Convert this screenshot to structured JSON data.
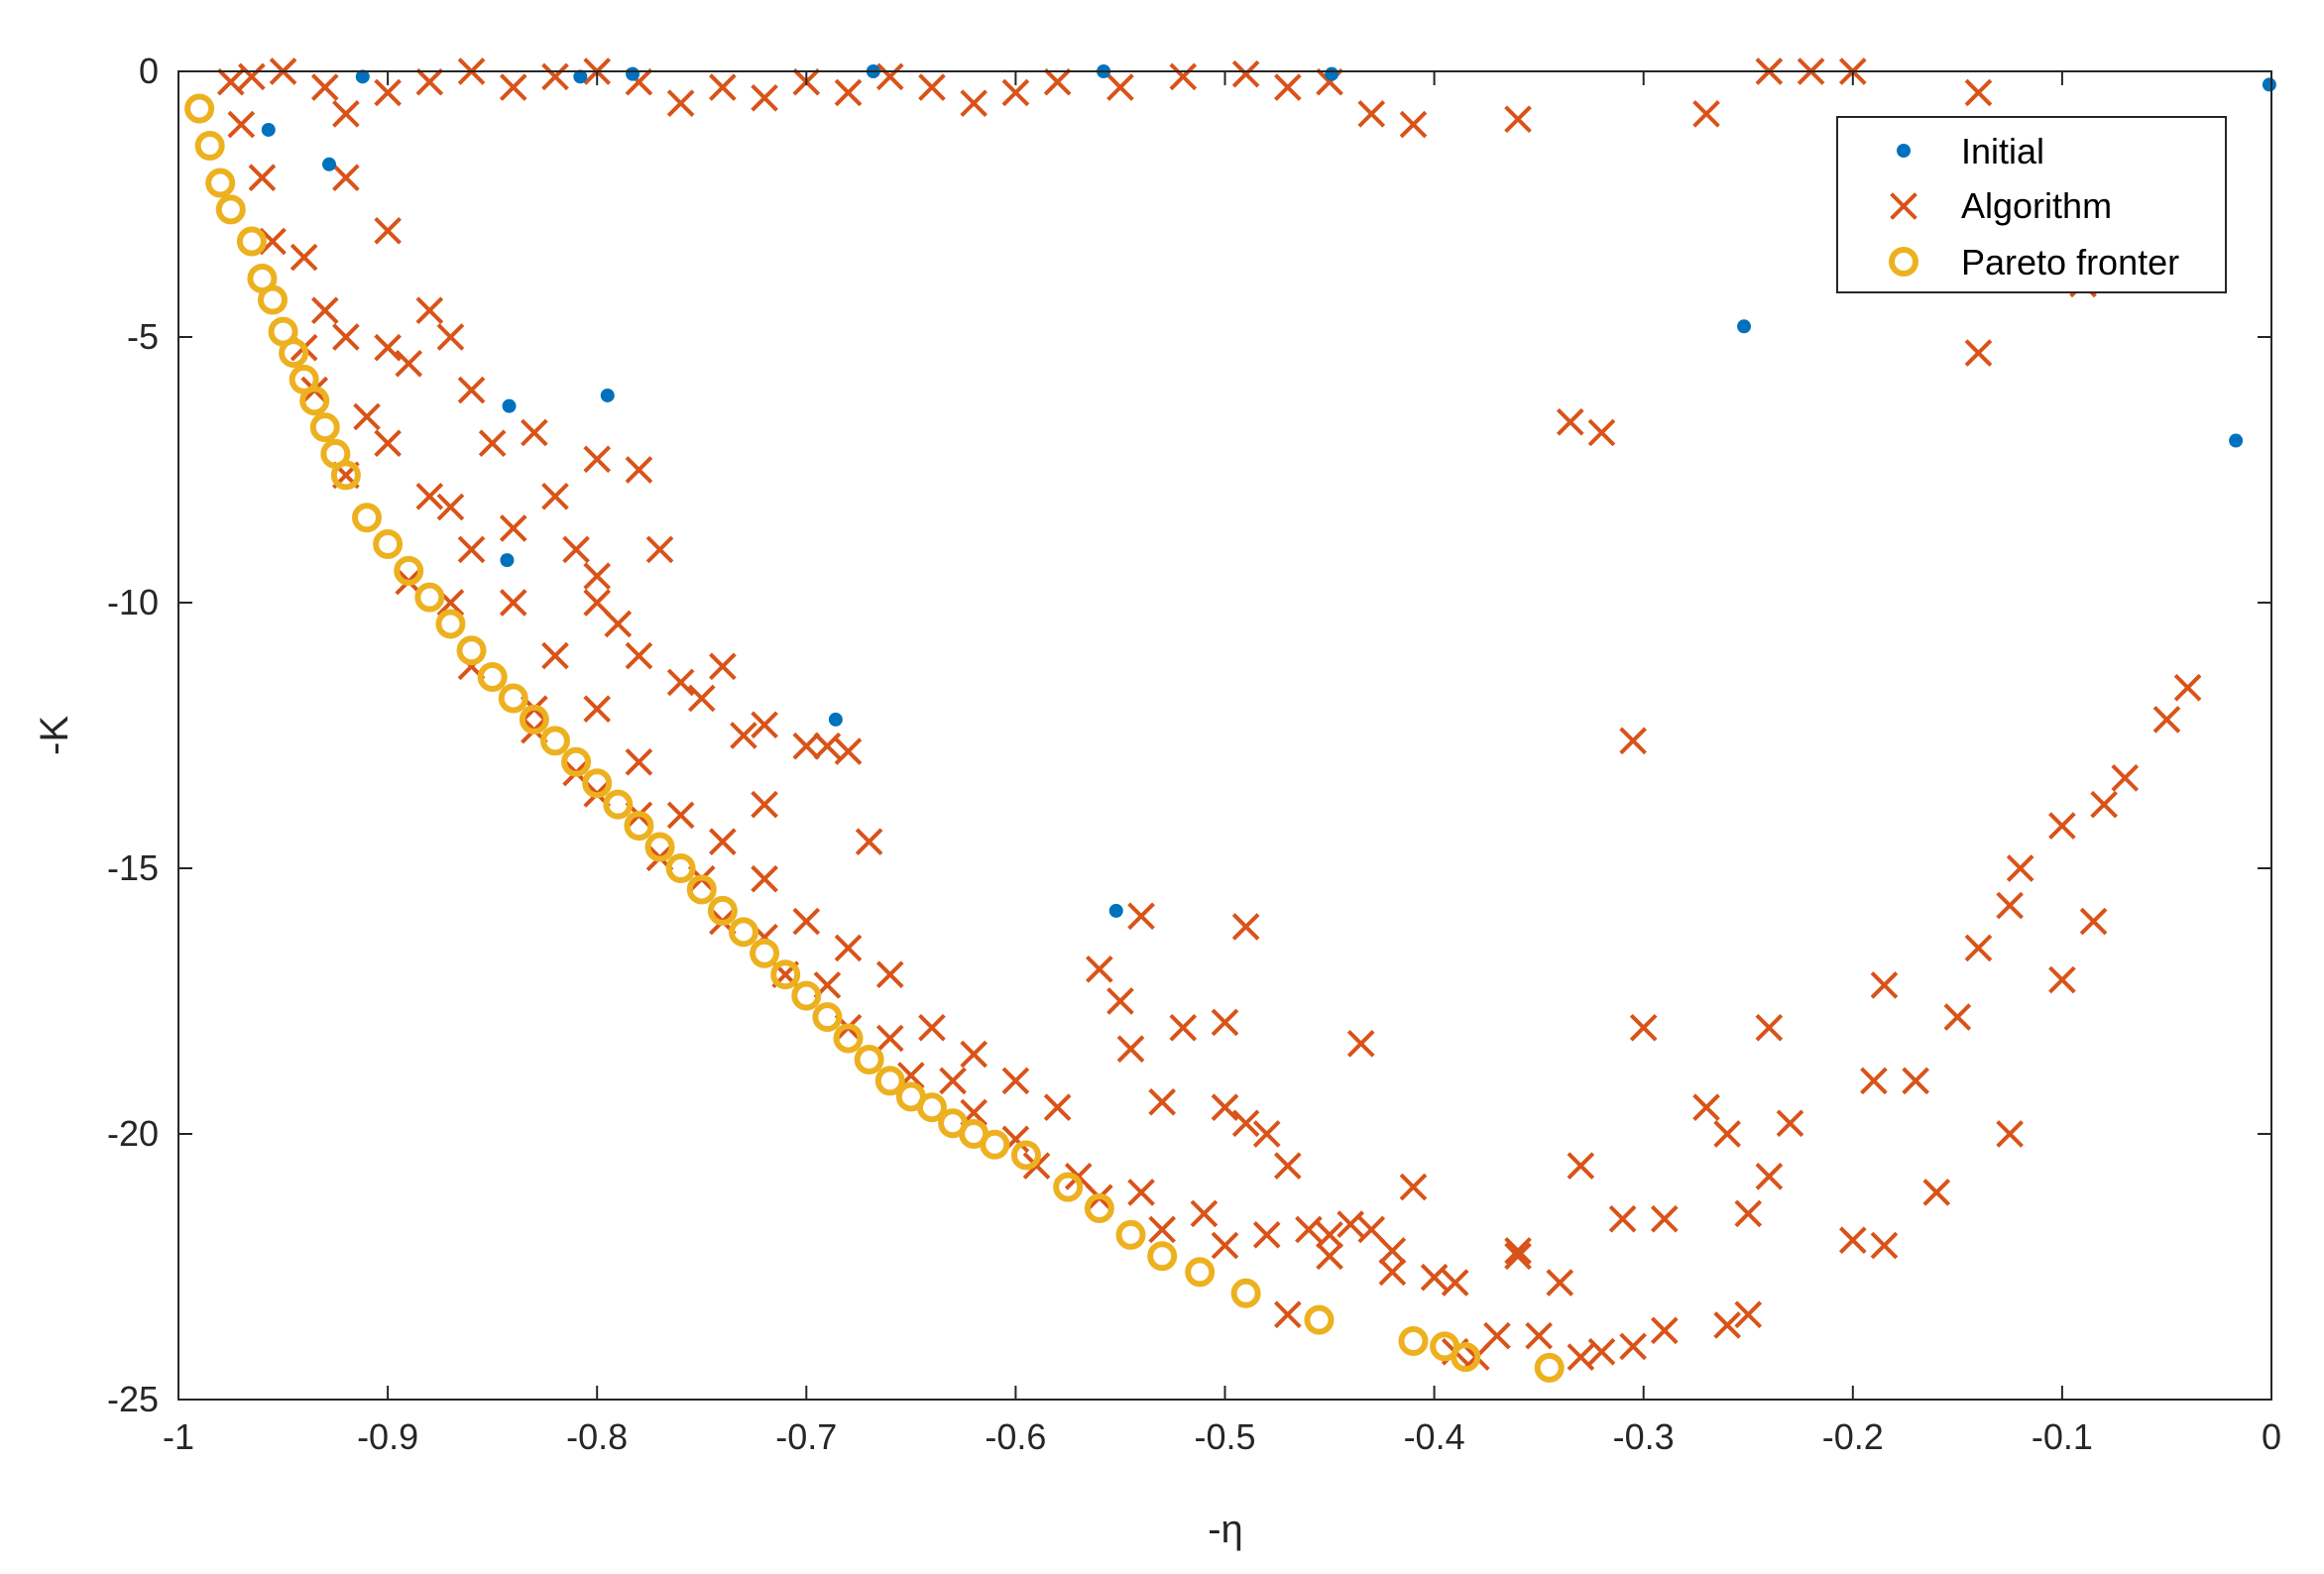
{
  "chart_data": {
    "type": "scatter",
    "xlabel": "-η",
    "ylabel": "-K",
    "xlim": [
      -1,
      0
    ],
    "ylim": [
      -25,
      0
    ],
    "xticks": [
      -1,
      -0.9,
      -0.8,
      -0.7,
      -0.6,
      -0.5,
      -0.4,
      -0.3,
      -0.2,
      -0.1,
      0
    ],
    "xtick_labels": [
      "-1",
      "-0.9",
      "-0.8",
      "-0.7",
      "-0.6",
      "-0.5",
      "-0.4",
      "-0.3",
      "-0.2",
      "-0.1",
      "0"
    ],
    "yticks": [
      0,
      -5,
      -10,
      -15,
      -20,
      -25
    ],
    "ytick_labels": [
      "0",
      "-5",
      "-10",
      "-15",
      "-20",
      "-25"
    ],
    "grid": false,
    "legend_position": "top-right",
    "series": [
      {
        "name": "Initial",
        "marker": "dot",
        "color": "#0072BD",
        "points": [
          [
            -0.957,
            -1.1
          ],
          [
            -0.928,
            -1.75
          ],
          [
            -0.912,
            -0.1
          ],
          [
            -0.842,
            -6.3
          ],
          [
            -0.843,
            -9.2
          ],
          [
            -0.795,
            -6.1
          ],
          [
            -0.808,
            -0.1
          ],
          [
            -0.783,
            -0.05
          ],
          [
            -0.686,
            -12.2
          ],
          [
            -0.668,
            0
          ],
          [
            -0.558,
            0
          ],
          [
            -0.552,
            -15.8
          ],
          [
            -0.449,
            -0.05
          ],
          [
            -0.252,
            -4.8
          ],
          [
            -0.017,
            -6.95
          ],
          [
            -0.001,
            -0.25
          ]
        ]
      },
      {
        "name": "Algorithm",
        "marker": "x",
        "color": "#D95319",
        "points": [
          [
            -0.975,
            -0.2
          ],
          [
            -0.965,
            -0.1
          ],
          [
            -0.95,
            0
          ],
          [
            -0.93,
            -0.3
          ],
          [
            -0.92,
            -0.8
          ],
          [
            -0.9,
            -0.4
          ],
          [
            -0.88,
            -0.2
          ],
          [
            -0.86,
            0
          ],
          [
            -0.84,
            -0.3
          ],
          [
            -0.82,
            -0.1
          ],
          [
            -0.8,
            0
          ],
          [
            -0.78,
            -0.2
          ],
          [
            -0.76,
            -0.6
          ],
          [
            -0.74,
            -0.3
          ],
          [
            -0.72,
            -0.5
          ],
          [
            -0.7,
            -0.2
          ],
          [
            -0.68,
            -0.4
          ],
          [
            -0.66,
            -0.1
          ],
          [
            -0.64,
            -0.3
          ],
          [
            -0.62,
            -0.6
          ],
          [
            -0.6,
            -0.4
          ],
          [
            -0.58,
            -0.2
          ],
          [
            -0.55,
            -0.3
          ],
          [
            -0.52,
            -0.1
          ],
          [
            -0.49,
            -0.05
          ],
          [
            -0.47,
            -0.3
          ],
          [
            -0.45,
            -0.2
          ],
          [
            -0.43,
            -0.8
          ],
          [
            -0.41,
            -1.0
          ],
          [
            -0.36,
            -0.9
          ],
          [
            -0.27,
            -0.8
          ],
          [
            -0.24,
            0
          ],
          [
            -0.22,
            0
          ],
          [
            -0.2,
            0
          ],
          [
            -0.14,
            -0.4
          ],
          [
            -0.14,
            -5.3
          ],
          [
            -0.09,
            -4.0
          ],
          [
            -0.335,
            -6.6
          ],
          [
            -0.32,
            -6.8
          ],
          [
            -0.305,
            -12.6
          ],
          [
            -0.05,
            -12.2
          ],
          [
            -0.04,
            -11.6
          ],
          [
            -0.07,
            -13.3
          ],
          [
            -0.08,
            -13.8
          ],
          [
            -0.1,
            -14.2
          ],
          [
            -0.12,
            -15.0
          ],
          [
            -0.125,
            -15.7
          ],
          [
            -0.14,
            -16.5
          ],
          [
            -0.15,
            -17.8
          ],
          [
            -0.17,
            -19.0
          ],
          [
            -0.185,
            -17.2
          ],
          [
            -0.19,
            -19.0
          ],
          [
            -0.2,
            -22.0
          ],
          [
            -0.185,
            -22.1
          ],
          [
            -0.16,
            -21.1
          ],
          [
            -0.125,
            -20.0
          ],
          [
            -0.1,
            -17.1
          ],
          [
            -0.085,
            -16.0
          ],
          [
            -0.24,
            -18.0
          ],
          [
            -0.23,
            -19.8
          ],
          [
            -0.24,
            -20.8
          ],
          [
            -0.26,
            -20.0
          ],
          [
            -0.25,
            -21.5
          ],
          [
            -0.27,
            -19.5
          ],
          [
            -0.26,
            -23.6
          ],
          [
            -0.25,
            -23.4
          ],
          [
            -0.29,
            -21.6
          ],
          [
            -0.29,
            -23.7
          ],
          [
            -0.3,
            -18.0
          ],
          [
            -0.305,
            -24.0
          ],
          [
            -0.32,
            -24.1
          ],
          [
            -0.33,
            -20.6
          ],
          [
            -0.34,
            -22.8
          ],
          [
            -0.35,
            -23.8
          ],
          [
            -0.36,
            -22.2
          ],
          [
            -0.37,
            -23.8
          ],
          [
            -0.38,
            -24.2
          ],
          [
            -0.39,
            -24.1
          ],
          [
            -0.4,
            -22.7
          ],
          [
            -0.41,
            -21.0
          ],
          [
            -0.42,
            -22.2
          ],
          [
            -0.43,
            -21.8
          ],
          [
            -0.44,
            -21.7
          ],
          [
            -0.45,
            -21.9
          ],
          [
            -0.46,
            -21.8
          ],
          [
            -0.47,
            -20.6
          ],
          [
            -0.48,
            -20.0
          ],
          [
            -0.49,
            -19.8
          ],
          [
            -0.5,
            -19.5
          ],
          [
            -0.5,
            -17.9
          ],
          [
            -0.52,
            -18.0
          ],
          [
            -0.53,
            -19.4
          ],
          [
            -0.545,
            -18.4
          ],
          [
            -0.55,
            -17.5
          ],
          [
            -0.56,
            -16.9
          ],
          [
            -0.49,
            -16.1
          ],
          [
            -0.435,
            -18.3
          ],
          [
            -0.54,
            -15.9
          ],
          [
            -0.58,
            -19.5
          ],
          [
            -0.6,
            -19.0
          ],
          [
            -0.62,
            -18.5
          ],
          [
            -0.64,
            -18.0
          ],
          [
            -0.66,
            -17.0
          ],
          [
            -0.68,
            -16.5
          ],
          [
            -0.7,
            -16.0
          ],
          [
            -0.72,
            -15.2
          ],
          [
            -0.74,
            -14.5
          ],
          [
            -0.76,
            -14.0
          ],
          [
            -0.78,
            -13.0
          ],
          [
            -0.8,
            -12.0
          ],
          [
            -0.82,
            -11.0
          ],
          [
            -0.84,
            -10.0
          ],
          [
            -0.86,
            -9.0
          ],
          [
            -0.88,
            -8.0
          ],
          [
            -0.9,
            -7.0
          ],
          [
            -0.92,
            -5.0
          ],
          [
            -0.94,
            -3.5
          ],
          [
            -0.96,
            -2.0
          ],
          [
            -0.97,
            -1.0
          ],
          [
            -0.67,
            -14.5
          ],
          [
            -0.72,
            -13.8
          ],
          [
            -0.7,
            -12.7
          ],
          [
            -0.73,
            -12.5
          ],
          [
            -0.76,
            -11.5
          ],
          [
            -0.79,
            -10.4
          ],
          [
            -0.8,
            -9.5
          ],
          [
            -0.77,
            -9.0
          ],
          [
            -0.82,
            -8.0
          ],
          [
            -0.85,
            -7.0
          ],
          [
            -0.87,
            -5.0
          ],
          [
            -0.88,
            -4.5
          ],
          [
            -0.9,
            -3.0
          ],
          [
            -0.92,
            -2.0
          ],
          [
            -0.78,
            -7.5
          ],
          [
            -0.8,
            -7.3
          ],
          [
            -0.83,
            -6.8
          ],
          [
            -0.86,
            -6.0
          ],
          [
            -0.89,
            -5.5
          ],
          [
            -0.9,
            -5.2
          ],
          [
            -0.8,
            -10.0
          ],
          [
            -0.78,
            -11.0
          ],
          [
            -0.75,
            -11.8
          ],
          [
            -0.72,
            -12.3
          ],
          [
            -0.69,
            -12.7
          ],
          [
            -0.68,
            -12.8
          ],
          [
            -0.74,
            -11.2
          ],
          [
            -0.81,
            -9.0
          ],
          [
            -0.84,
            -8.6
          ],
          [
            -0.87,
            -8.2
          ],
          [
            -0.91,
            -6.5
          ],
          [
            -0.93,
            -4.5
          ],
          [
            -0.935,
            -6.0
          ],
          [
            -0.87,
            -10.0
          ],
          [
            -0.83,
            -12.0
          ],
          [
            -0.81,
            -13.2
          ],
          [
            -0.78,
            -14.0
          ],
          [
            -0.75,
            -15.2
          ],
          [
            -0.72,
            -16.3
          ],
          [
            -0.69,
            -17.2
          ],
          [
            -0.66,
            -18.2
          ],
          [
            -0.63,
            -19.0
          ],
          [
            -0.6,
            -20.1
          ],
          [
            -0.57,
            -20.8
          ],
          [
            -0.54,
            -21.1
          ],
          [
            -0.51,
            -21.5
          ],
          [
            -0.48,
            -21.9
          ],
          [
            -0.45,
            -22.3
          ],
          [
            -0.42,
            -22.6
          ],
          [
            -0.39,
            -22.8
          ],
          [
            -0.36,
            -22.3
          ],
          [
            -0.33,
            -24.2
          ],
          [
            -0.31,
            -21.6
          ],
          [
            -0.47,
            -23.4
          ],
          [
            -0.5,
            -22.1
          ],
          [
            -0.53,
            -21.8
          ],
          [
            -0.56,
            -21.2
          ],
          [
            -0.59,
            -20.6
          ],
          [
            -0.62,
            -19.6
          ],
          [
            -0.65,
            -18.9
          ],
          [
            -0.68,
            -18.0
          ],
          [
            -0.71,
            -17.0
          ],
          [
            -0.74,
            -16.0
          ],
          [
            -0.77,
            -14.8
          ],
          [
            -0.8,
            -13.6
          ],
          [
            -0.83,
            -12.4
          ],
          [
            -0.86,
            -11.2
          ],
          [
            -0.89,
            -9.6
          ],
          [
            -0.92,
            -7.6
          ],
          [
            -0.94,
            -5.2
          ],
          [
            -0.955,
            -3.2
          ]
        ]
      },
      {
        "name": "Pareto fronter",
        "marker": "circle",
        "color": "#EDB120",
        "points": [
          [
            -0.99,
            -0.7
          ],
          [
            -0.985,
            -1.4
          ],
          [
            -0.98,
            -2.1
          ],
          [
            -0.975,
            -2.6
          ],
          [
            -0.965,
            -3.2
          ],
          [
            -0.96,
            -3.9
          ],
          [
            -0.955,
            -4.3
          ],
          [
            -0.95,
            -4.9
          ],
          [
            -0.945,
            -5.3
          ],
          [
            -0.94,
            -5.8
          ],
          [
            -0.935,
            -6.2
          ],
          [
            -0.93,
            -6.7
          ],
          [
            -0.925,
            -7.2
          ],
          [
            -0.92,
            -7.6
          ],
          [
            -0.91,
            -8.4
          ],
          [
            -0.9,
            -8.9
          ],
          [
            -0.89,
            -9.4
          ],
          [
            -0.88,
            -9.9
          ],
          [
            -0.87,
            -10.4
          ],
          [
            -0.86,
            -10.9
          ],
          [
            -0.85,
            -11.4
          ],
          [
            -0.84,
            -11.8
          ],
          [
            -0.83,
            -12.2
          ],
          [
            -0.82,
            -12.6
          ],
          [
            -0.81,
            -13.0
          ],
          [
            -0.8,
            -13.4
          ],
          [
            -0.79,
            -13.8
          ],
          [
            -0.78,
            -14.2
          ],
          [
            -0.77,
            -14.6
          ],
          [
            -0.76,
            -15.0
          ],
          [
            -0.75,
            -15.4
          ],
          [
            -0.74,
            -15.8
          ],
          [
            -0.73,
            -16.2
          ],
          [
            -0.72,
            -16.6
          ],
          [
            -0.71,
            -17.0
          ],
          [
            -0.7,
            -17.4
          ],
          [
            -0.69,
            -17.8
          ],
          [
            -0.68,
            -18.2
          ],
          [
            -0.67,
            -18.6
          ],
          [
            -0.66,
            -19.0
          ],
          [
            -0.65,
            -19.3
          ],
          [
            -0.64,
            -19.5
          ],
          [
            -0.63,
            -19.8
          ],
          [
            -0.62,
            -20.0
          ],
          [
            -0.61,
            -20.2
          ],
          [
            -0.595,
            -20.4
          ],
          [
            -0.575,
            -21.0
          ],
          [
            -0.56,
            -21.4
          ],
          [
            -0.545,
            -21.9
          ],
          [
            -0.53,
            -22.3
          ],
          [
            -0.512,
            -22.6
          ],
          [
            -0.49,
            -23.0
          ],
          [
            -0.455,
            -23.5
          ],
          [
            -0.41,
            -23.9
          ],
          [
            -0.395,
            -24.0
          ],
          [
            -0.385,
            -24.2
          ],
          [
            -0.345,
            -24.4
          ]
        ]
      }
    ]
  }
}
